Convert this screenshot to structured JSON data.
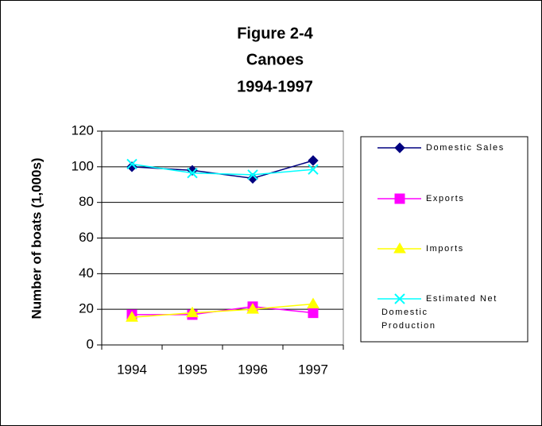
{
  "chart_data": {
    "type": "line",
    "title": [
      "Figure 2-4",
      "Canoes",
      "1994-1997"
    ],
    "y_label": "Number of boats (1,000s)",
    "categories": [
      "1994",
      "1995",
      "1996",
      "1997"
    ],
    "series": [
      {
        "name": "Domestic Sales",
        "color": "#000080",
        "marker": "diamond",
        "values": [
          100,
          98,
          93.5,
          103.5
        ]
      },
      {
        "name": "Exports",
        "color": "#ff00ff",
        "marker": "square",
        "values": [
          17,
          17,
          21.5,
          18
        ]
      },
      {
        "name": "Imports",
        "color": "#ffff00",
        "marker": "triangle",
        "values": [
          15.5,
          18,
          20,
          23
        ]
      },
      {
        "name": "Estimated Net Domestic Production",
        "color": "#00ffff",
        "marker": "x",
        "values": [
          101.5,
          96.5,
          95.5,
          98.5
        ]
      }
    ],
    "ylim": [
      0,
      120
    ],
    "yticks": [
      0,
      20,
      40,
      60,
      80,
      100,
      120
    ],
    "grid": true,
    "legend": "right"
  }
}
